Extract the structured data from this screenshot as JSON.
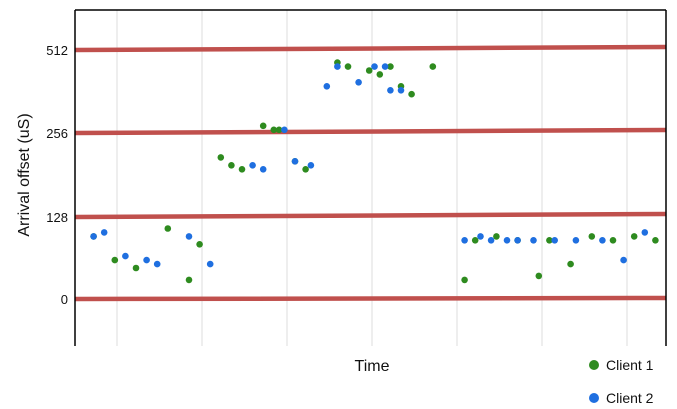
{
  "chart_data": {
    "type": "scatter",
    "xlabel": "Time",
    "ylabel": "Arrival offset (uS)",
    "y_ticks": [
      "512",
      "256",
      "128",
      "0"
    ],
    "legend_position": "bottom-right",
    "grid": true,
    "threshold_lines": [
      "512",
      "256",
      "128",
      "0"
    ],
    "colors": {
      "Client 1": "#2e8b1f",
      "Client 2": "#1f6fe0",
      "threshold": "#c0504d"
    },
    "series": [
      {
        "name": "Client 1",
        "points": [
          [
            1,
            28
          ],
          [
            3,
            22
          ],
          [
            5,
            20
          ],
          [
            8,
            30
          ],
          [
            10,
            17
          ],
          [
            11,
            26
          ],
          [
            13,
            48
          ],
          [
            14,
            46
          ],
          [
            15,
            45
          ],
          [
            17,
            56
          ],
          [
            18,
            55
          ],
          [
            18.5,
            55
          ],
          [
            20,
            47
          ],
          [
            21,
            45
          ],
          [
            24,
            72
          ],
          [
            25,
            71
          ],
          [
            27,
            70
          ],
          [
            28,
            69
          ],
          [
            29,
            71
          ],
          [
            30,
            66
          ],
          [
            31,
            64
          ],
          [
            33,
            71
          ],
          [
            36,
            17
          ],
          [
            37,
            27
          ],
          [
            39,
            28
          ],
          [
            41,
            27
          ],
          [
            43,
            18
          ],
          [
            44,
            27
          ],
          [
            46,
            21
          ],
          [
            48,
            28
          ],
          [
            50,
            27
          ],
          [
            52,
            28
          ],
          [
            54,
            27
          ]
        ]
      },
      {
        "name": "Client 2",
        "points": [
          [
            1,
            28
          ],
          [
            2,
            29
          ],
          [
            4,
            23
          ],
          [
            6,
            22
          ],
          [
            7,
            21
          ],
          [
            10,
            28
          ],
          [
            12,
            21
          ],
          [
            16,
            46
          ],
          [
            17,
            45
          ],
          [
            19,
            55
          ],
          [
            20,
            47
          ],
          [
            21.5,
            46
          ],
          [
            23,
            66
          ],
          [
            24,
            71
          ],
          [
            26,
            67
          ],
          [
            27.5,
            71
          ],
          [
            28.5,
            71
          ],
          [
            29,
            65
          ],
          [
            30,
            65
          ],
          [
            36,
            27
          ],
          [
            37.5,
            28
          ],
          [
            38.5,
            27
          ],
          [
            40,
            27
          ],
          [
            41,
            27
          ],
          [
            42.5,
            27
          ],
          [
            44.5,
            27
          ],
          [
            46.5,
            27
          ],
          [
            49,
            27
          ],
          [
            51,
            22
          ],
          [
            53,
            29
          ]
        ]
      }
    ]
  }
}
